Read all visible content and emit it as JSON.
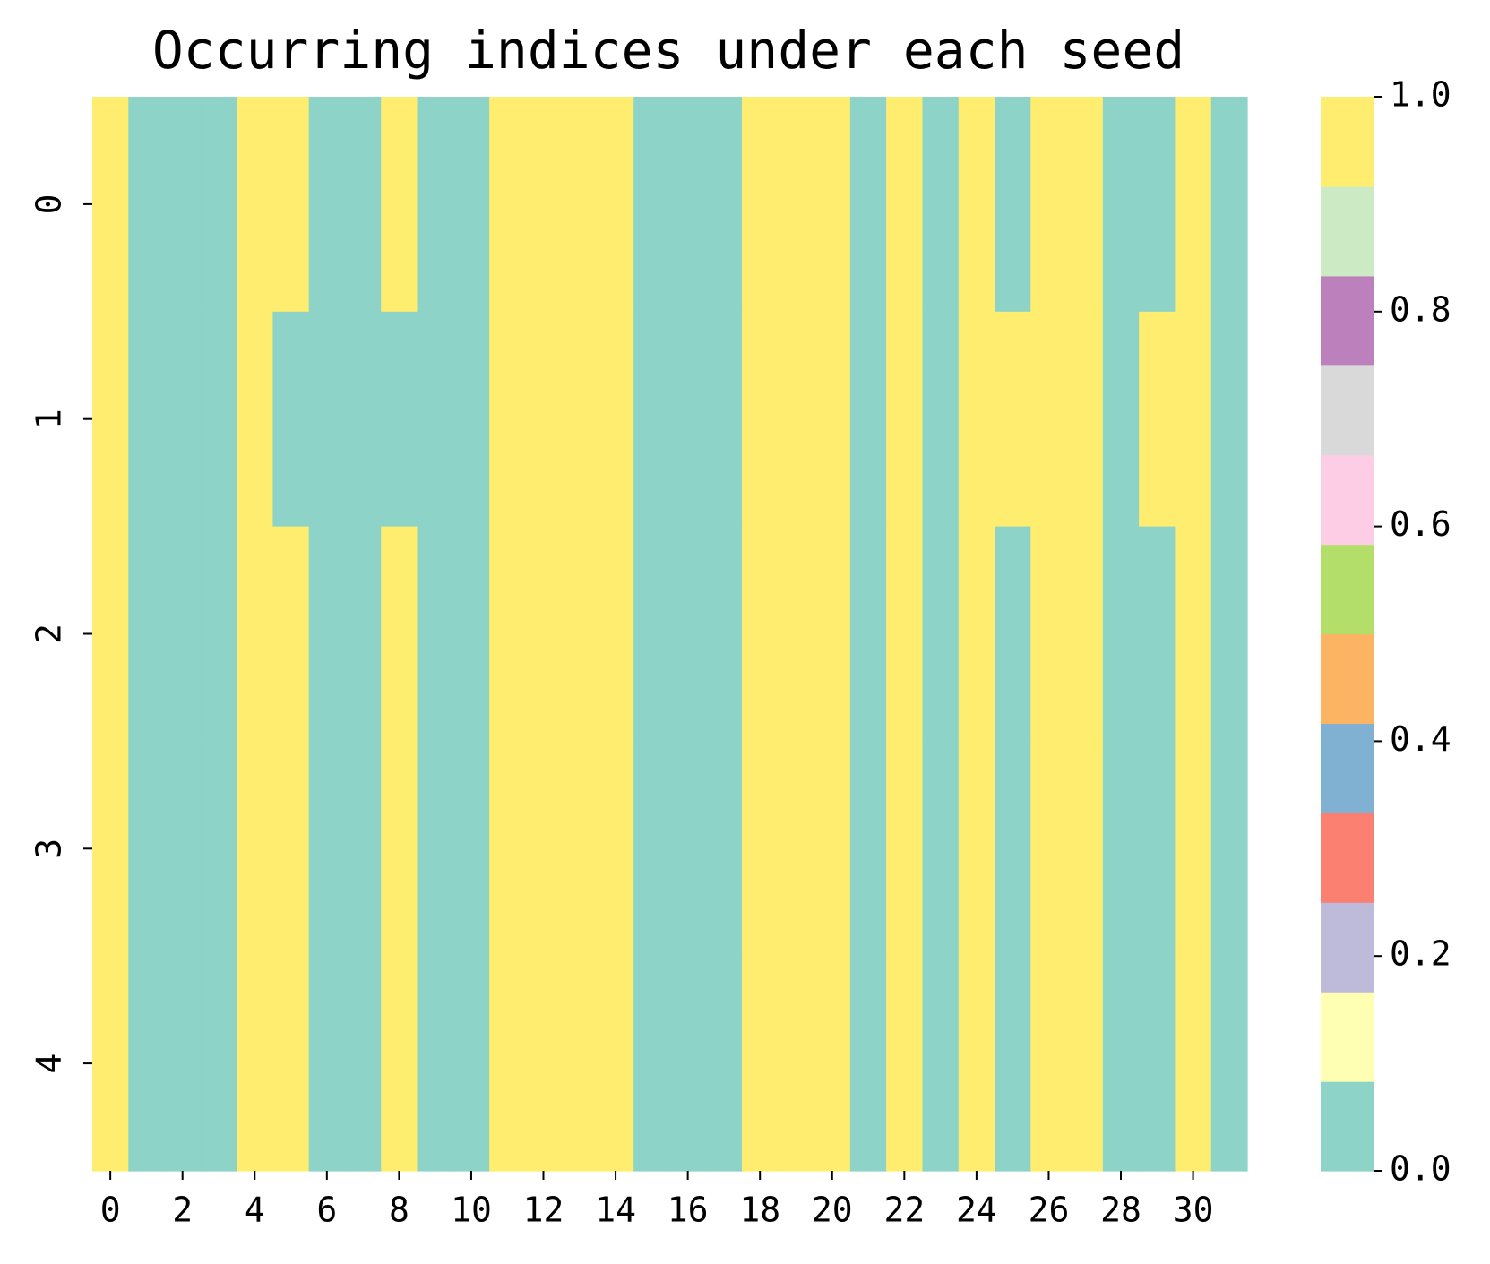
{
  "chart_data": {
    "type": "heatmap",
    "title": "Occurring indices under each seed",
    "xticks": [
      0,
      2,
      4,
      6,
      8,
      10,
      12,
      14,
      16,
      18,
      20,
      22,
      24,
      26,
      28,
      30
    ],
    "yticks": [
      0,
      1,
      2,
      3,
      4
    ],
    "values": [
      [
        1,
        0,
        0,
        0,
        1,
        1,
        0,
        0,
        1,
        0,
        0,
        1,
        1,
        1,
        1,
        0,
        0,
        0,
        1,
        1,
        1,
        0,
        1,
        0,
        1,
        0,
        1,
        1,
        0,
        0,
        1,
        0
      ],
      [
        1,
        0,
        0,
        0,
        1,
        0,
        0,
        0,
        0,
        0,
        0,
        1,
        1,
        1,
        1,
        0,
        0,
        0,
        1,
        1,
        1,
        0,
        1,
        0,
        1,
        1,
        1,
        1,
        0,
        1,
        1,
        0
      ],
      [
        1,
        0,
        0,
        0,
        1,
        1,
        0,
        0,
        1,
        0,
        0,
        1,
        1,
        1,
        1,
        0,
        0,
        0,
        1,
        1,
        1,
        0,
        1,
        0,
        1,
        0,
        1,
        1,
        0,
        0,
        1,
        0
      ],
      [
        1,
        0,
        0,
        0,
        1,
        1,
        0,
        0,
        1,
        0,
        0,
        1,
        1,
        1,
        1,
        0,
        0,
        0,
        1,
        1,
        1,
        0,
        1,
        0,
        1,
        0,
        1,
        1,
        0,
        0,
        1,
        0
      ],
      [
        1,
        0,
        0,
        0,
        1,
        1,
        0,
        0,
        1,
        0,
        0,
        1,
        1,
        1,
        1,
        0,
        0,
        0,
        1,
        1,
        1,
        0,
        1,
        0,
        1,
        0,
        1,
        1,
        0,
        0,
        1,
        0
      ]
    ],
    "colormap": [
      "#8dd3c7",
      "#ffffb3",
      "#bebada",
      "#fb8072",
      "#80b1d3",
      "#fdb462",
      "#b3de69",
      "#fccde5",
      "#d9d9d9",
      "#bc80bd",
      "#ccebc5",
      "#ffed6f"
    ],
    "clim": [
      0,
      1
    ],
    "cticks": [
      {
        "value": 0,
        "label": "0.0"
      },
      0.2,
      0.4,
      0.6,
      0.8,
      {
        "value": 1,
        "label": "1.0"
      }
    ]
  }
}
